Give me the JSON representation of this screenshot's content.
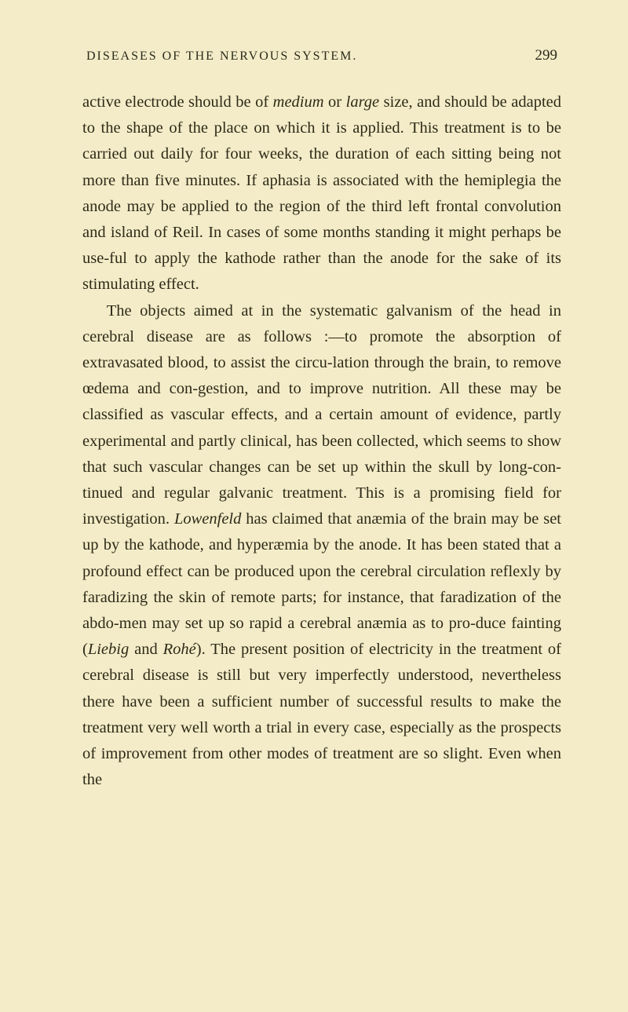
{
  "header": {
    "running_title": "DISEASES OF THE NERVOUS SYSTEM.",
    "page_number": "299"
  },
  "paragraphs": {
    "p1_part1": "active electrode should be of ",
    "p1_italic1": "medium",
    "p1_part2": " or ",
    "p1_italic2": "large",
    "p1_part3": " size, and should be adapted to the shape of the place on which it is applied. This treatment is to be carried out daily for four weeks, the duration of each sitting being not more than five minutes. If aphasia is associated with the hemiplegia the anode may be applied to the region of the third left frontal convolution and island of Reil. In cases of some months standing it might perhaps be use-ful to apply the kathode rather than the anode for the sake of its stimulating effect.",
    "p2_part1": "The objects aimed at in the systematic galvanism of the head in cerebral disease are as follows :—to promote the absorption of extravasated blood, to assist the circu-lation through the brain, to remove œdema and con-gestion, and to improve nutrition. All these may be classified as vascular effects, and a certain amount of evidence, partly experimental and partly clinical, has been collected, which seems to show that such vascular changes can be set up within the skull by long-con-tinued and regular galvanic treatment. This is a promising field for investigation. ",
    "p2_italic1": "Lowenfeld",
    "p2_part2": " has claimed that anæmia of the brain may be set up by the kathode, and hyperæmia by the anode. It has been stated that a profound effect can be produced upon the cerebral circulation reflexly by faradizing the skin of remote parts; for instance, that faradization of the abdo-men may set up so rapid a cerebral anæmia as to pro-duce fainting (",
    "p2_italic2": "Liebig",
    "p2_part3": " and ",
    "p2_italic3": "Rohé",
    "p2_part4": "). The present position of electricity in the treatment of cerebral disease is still but very imperfectly understood, nevertheless there have been a sufficient number of successful results to make the treatment very well worth a trial in every case, especially as the prospects of improvement from other modes of treatment are so slight. Even when the"
  },
  "styles": {
    "background_color": "#f4ecc8",
    "text_color": "#2e2a18",
    "body_font_size": 20.5,
    "line_height": 1.62,
    "header_font_size": 16,
    "page_number_font_size": 19
  }
}
